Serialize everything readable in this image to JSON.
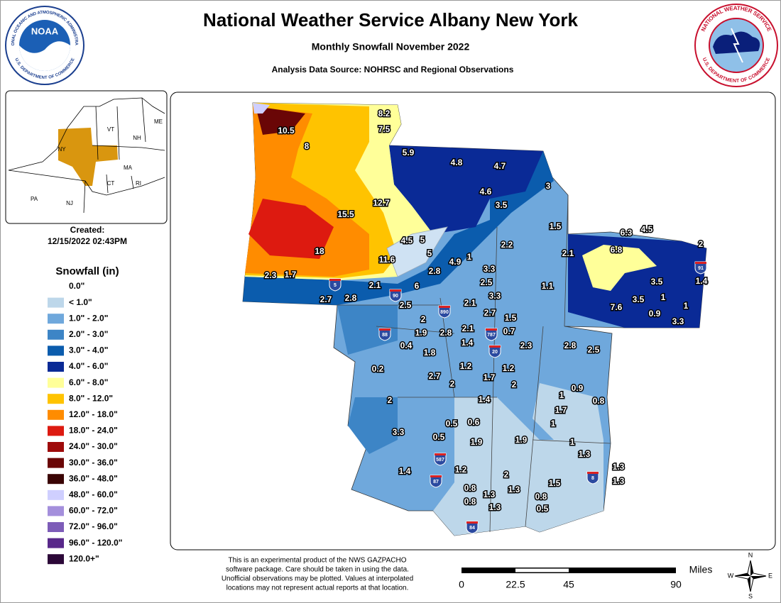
{
  "header": {
    "title": "National Weather Service Albany New York",
    "subtitle": "Monthly Snowfall November 2022",
    "source": "Analysis Data Source: NOHRSC and Regional Observations"
  },
  "logos": {
    "noaa": {
      "name": "NOAA",
      "ring_top": "NATIONAL OCEANIC AND ATMOSPHERIC ADMINISTRATION",
      "ring_bottom": "U.S. DEPARTMENT OF COMMERCE"
    },
    "nws": {
      "ring_top": "NATIONAL WEATHER SERVICE",
      "ring_bottom": "U.S. DEPARTMENT OF COMMERCE"
    }
  },
  "inset": {
    "labels": [
      "ME",
      "VT",
      "NH",
      "NY",
      "MA",
      "CT",
      "RI",
      "PA",
      "NJ"
    ]
  },
  "created": {
    "label": "Created:",
    "timestamp": "12/15/2022 02:43PM"
  },
  "legend": {
    "title": "Snowfall (in)",
    "items": [
      {
        "label": "0.0\"",
        "color": "#ffffff"
      },
      {
        "label": "< 1.0\"",
        "color": "#bdd7ea"
      },
      {
        "label": "1.0\" - 2.0\"",
        "color": "#6fa8dc"
      },
      {
        "label": "2.0\" - 3.0\"",
        "color": "#3d85c6"
      },
      {
        "label": "3.0\" - 4.0\"",
        "color": "#0b5cad"
      },
      {
        "label": "4.0\" - 6.0\"",
        "color": "#0a2a96"
      },
      {
        "label": "6.0\" - 8.0\"",
        "color": "#ffff99"
      },
      {
        "label": "8.0\" - 12.0\"",
        "color": "#ffc300"
      },
      {
        "label": "12.0\" - 18.0\"",
        "color": "#ff8c00"
      },
      {
        "label": "18.0\" - 24.0\"",
        "color": "#dd1a10"
      },
      {
        "label": "24.0\" - 30.0\"",
        "color": "#9e0a0a"
      },
      {
        "label": "30.0\" - 36.0\"",
        "color": "#6a0606"
      },
      {
        "label": "36.0\" - 48.0\"",
        "color": "#3a0404"
      },
      {
        "label": "48.0\" - 60.0\"",
        "color": "#cfcfff"
      },
      {
        "label": "60.0\" - 72.0\"",
        "color": "#a48fdc"
      },
      {
        "label": "72.0\" - 96.0\"",
        "color": "#7d5cb8"
      },
      {
        "label": "96.0\" - 120.0\"",
        "color": "#58288a"
      },
      {
        "label": "120.0+\"",
        "color": "#2c0838"
      }
    ]
  },
  "map": {
    "observations": [
      "10.5",
      "8",
      "8.2",
      "7.5",
      "5.9",
      "4.8",
      "4.7",
      "4.6",
      "3",
      "3.5",
      "12.7",
      "15.5",
      "1.5",
      "6.3",
      "4.5",
      "2",
      "4.5",
      "5",
      "2.2",
      "18",
      "6.8",
      "5",
      "11.6",
      "4.9",
      "1",
      "2.1",
      "2.8",
      "3.3",
      "2.3",
      "1.7",
      "3.5",
      "1.4",
      "2.5",
      "2.1",
      "6",
      "1.1",
      "3.3",
      "1",
      "3.5",
      "2.7",
      "2.8",
      "2.5",
      "2.1",
      "7.6",
      "1",
      "0.9",
      "2.7",
      "1.5",
      "3.3",
      "2",
      "2.1",
      "1.9",
      "2.8",
      "0.7",
      "1.4",
      "0.4",
      "2.3",
      "2.8",
      "2.5",
      "1.8",
      "1.2",
      "1.2",
      "0.2",
      "2.7",
      "1.7",
      "2",
      "2",
      "0.9",
      "1",
      "0.8",
      "2",
      "1.4",
      "1.7",
      "1",
      "0.5",
      "0.6",
      "3.3",
      "0.5",
      "1.9",
      "1.9",
      "1",
      "1.3",
      "1.3",
      "1.4",
      "1.2",
      "2",
      "1.3",
      "1.5",
      "0.8",
      "1.3",
      "1.3",
      "0.8",
      "0.8",
      "1.3",
      "0.5"
    ],
    "highways": [
      "5",
      "90",
      "890",
      "88",
      "787",
      "20",
      "587",
      "87",
      "84",
      "8",
      "91"
    ]
  },
  "disclaimer": [
    "This is an experimental product of the NWS GAZPACHO",
    "software package. Care should be taken in using the data.",
    "Unofficial observations may be plotted. Values at interpolated",
    "locations may not represent actual reports at that location."
  ],
  "scale": {
    "unit": "Miles",
    "ticks": [
      "0",
      "22.5",
      "45",
      "90"
    ]
  },
  "compass": [
    "N",
    "E",
    "S",
    "W"
  ]
}
